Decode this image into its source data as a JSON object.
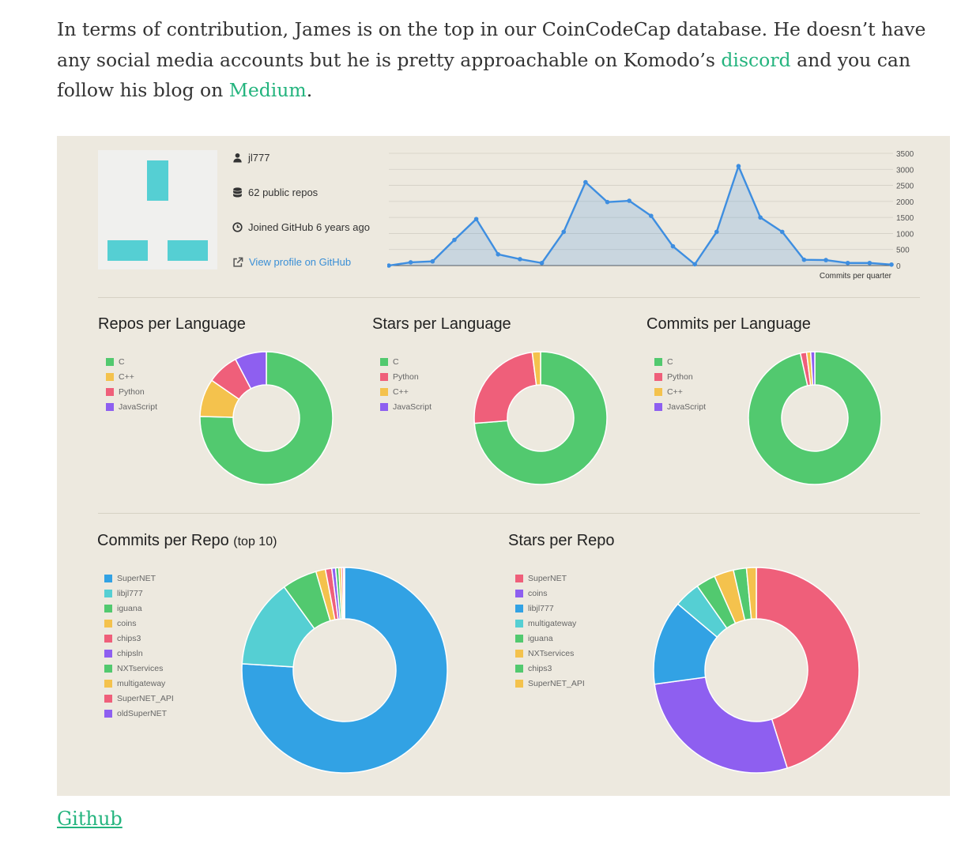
{
  "article": {
    "para_before_discord": "In terms of contribution, James is on the top in our CoinCodeCap database. He doesn’t have any social media accounts but he is pretty approachable on Komodo’s ",
    "discord_link": "discord",
    "para_between": " and you can follow his blog on ",
    "medium_link": "Medium",
    "para_end": ".",
    "caption_link": "Github"
  },
  "profile": {
    "username": "jl777",
    "repos": "62 public repos",
    "joined": "Joined GitHub 6 years ago",
    "view_profile": "View profile on GitHub",
    "icons": [
      "user-icon",
      "database-icon",
      "clock-icon",
      "external-link-icon"
    ]
  },
  "colors": {
    "link": "#24b47e",
    "panel_bg": "#ede9df",
    "green": "#52c96f",
    "yellow": "#f4c24d",
    "red": "#ef5f7a",
    "purple": "#8e5ff0",
    "blue": "#32a2e4",
    "teal": "#55cfd3",
    "line": "#3e8ee0"
  },
  "chart_data": [
    {
      "type": "area",
      "xlabel": "Commits per quarter",
      "ylim": [
        0,
        3500
      ],
      "yticks": [
        0,
        500,
        1000,
        1500,
        2000,
        2500,
        3000,
        3500
      ],
      "grid": true,
      "values": [
        0,
        100,
        130,
        800,
        1450,
        350,
        200,
        80,
        1050,
        2600,
        1980,
        2020,
        1550,
        600,
        40,
        1050,
        3100,
        1500,
        1050,
        180,
        170,
        80,
        80,
        30
      ]
    },
    {
      "type": "pie",
      "title": "Repos per Language",
      "labels": [
        "C",
        "C++",
        "Python",
        "JavaScript"
      ],
      "values": [
        49,
        6,
        5,
        5
      ],
      "colors": [
        "#52c96f",
        "#f4c24d",
        "#ef5f7a",
        "#8e5ff0"
      ],
      "legend_order": [
        "C",
        "C++",
        "Python",
        "JavaScript"
      ]
    },
    {
      "type": "pie",
      "title": "Stars per Language",
      "labels": [
        "C",
        "Python",
        "C++",
        "JavaScript"
      ],
      "values": [
        73,
        24,
        2,
        0
      ],
      "colors": [
        "#52c96f",
        "#ef5f7a",
        "#f4c24d",
        "#8e5ff0"
      ],
      "legend_order": [
        "C",
        "Python",
        "C++",
        "JavaScript"
      ]
    },
    {
      "type": "pie",
      "title": "Commits per Language",
      "labels": [
        "C",
        "Python",
        "C++",
        "JavaScript"
      ],
      "values": [
        96.5,
        1.5,
        1,
        1
      ],
      "colors": [
        "#52c96f",
        "#ef5f7a",
        "#f4c24d",
        "#8e5ff0"
      ],
      "legend_order": [
        "C",
        "Python",
        "C++",
        "JavaScript"
      ]
    },
    {
      "type": "pie",
      "title": "Commits per Repo",
      "subtitle": "(top 10)",
      "labels": [
        "SuperNET",
        "libjl777",
        "iguana",
        "coins",
        "chips3",
        "chipsln",
        "NXTservices",
        "multigateway",
        "SuperNET_API",
        "oldSuperNET"
      ],
      "values": [
        76,
        14,
        5.5,
        1.5,
        1,
        0.6,
        0.5,
        0.4,
        0.3,
        0.2
      ],
      "colors": [
        "#32a2e4",
        "#55cfd3",
        "#52c96f",
        "#f4c24d",
        "#ef5f7a",
        "#8e5ff0",
        "#52c96f",
        "#f4c24d",
        "#ef5f7a",
        "#8e5ff0"
      ],
      "legend_order": [
        "SuperNET",
        "libjl777",
        "iguana",
        "coins",
        "chips3",
        "chipsln",
        "NXTservices",
        "multigateway",
        "SuperNET_API",
        "oldSuperNET"
      ]
    },
    {
      "type": "pie",
      "title": "Stars per Repo",
      "labels": [
        "SuperNET",
        "coins",
        "libjl777",
        "multigateway",
        "iguana",
        "NXTservices",
        "chips3",
        "SuperNET_API"
      ],
      "values": [
        44,
        27,
        13,
        4,
        3,
        3,
        2,
        1.5
      ],
      "colors": [
        "#ef5f7a",
        "#8e5ff0",
        "#32a2e4",
        "#55cfd3",
        "#52c96f",
        "#f4c24d",
        "#52c96f",
        "#f4c24d"
      ],
      "legend_order": [
        "SuperNET",
        "coins",
        "libjl777",
        "multigateway",
        "iguana",
        "NXTservices",
        "chips3",
        "SuperNET_API"
      ]
    }
  ]
}
